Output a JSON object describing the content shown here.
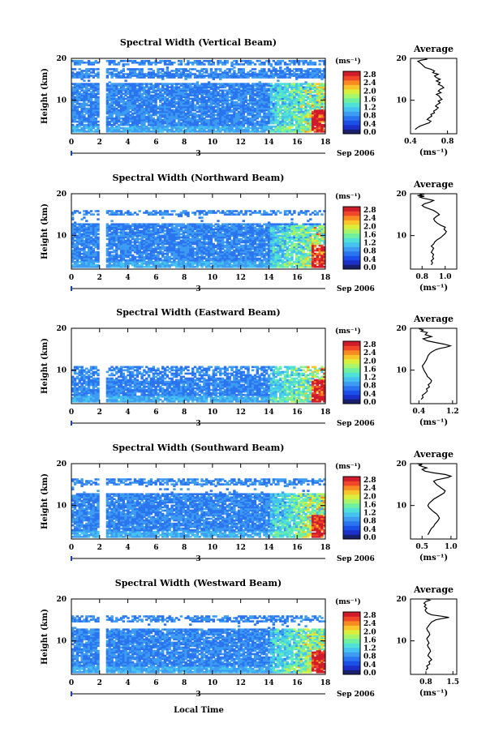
{
  "figure": {
    "xlabel": "Local Time",
    "date_label": "Sep 2006",
    "day_marker": "3"
  },
  "colorbar": {
    "unit": "(ms⁻¹)",
    "ticks": [
      "2.8",
      "2.4",
      "2.0",
      "1.6",
      "1.2",
      "0.8",
      "0.4",
      "0.0"
    ],
    "colors": [
      "#18206b",
      "#1c2fc8",
      "#1a4fe8",
      "#2b74f0",
      "#3d9cf2",
      "#45c3f0",
      "#4fe0d8",
      "#6ef0a0",
      "#a6f56a",
      "#dcee3c",
      "#f9c52a",
      "#f98a22",
      "#f0462a",
      "#d01c2a"
    ]
  },
  "chart_data": [
    {
      "type": "heatmap",
      "title": "Spectral Width (Vertical Beam)",
      "ylabel": "Height (km)",
      "xlim": [
        0,
        18
      ],
      "ylim": [
        2,
        20
      ],
      "xticks": [
        0,
        2,
        4,
        6,
        8,
        10,
        12,
        14,
        16,
        18
      ],
      "yticks": [
        10,
        20
      ],
      "data_gap_x": 2.2,
      "no_echo_bands_km": [
        [
          17.5,
          18.5
        ],
        [
          14.0,
          15.2
        ]
      ],
      "upper_limit_km": 19.5,
      "lower_limit_km": 2.3,
      "high_width_region": {
        "x_start": 14.0,
        "y_max": 14.0
      },
      "colorbar_range": [
        0.0,
        2.8
      ]
    },
    {
      "type": "heatmap",
      "title": "Spectral Width (Northward Beam)",
      "ylabel": "Height (km)",
      "xlim": [
        0,
        18
      ],
      "ylim": [
        2,
        20
      ],
      "xticks": [
        0,
        2,
        4,
        6,
        8,
        10,
        12,
        14,
        16,
        18
      ],
      "yticks": [
        10,
        20
      ],
      "data_gap_x": 2.2,
      "no_echo_bands_km": [
        [
          16.5,
          20.0
        ],
        [
          13.0,
          14.8
        ]
      ],
      "upper_limit_km": 16.2,
      "lower_limit_km": 2.3,
      "high_width_region": {
        "x_start": 14.0,
        "y_max": 12.5
      },
      "colorbar_range": [
        0.0,
        2.8
      ]
    },
    {
      "type": "heatmap",
      "title": "Spectral Width (Eastward Beam)",
      "ylabel": "Height (km)",
      "xlim": [
        0,
        18
      ],
      "ylim": [
        2,
        20
      ],
      "xticks": [
        0,
        2,
        4,
        6,
        8,
        10,
        12,
        14,
        16,
        18
      ],
      "yticks": [
        10,
        20
      ],
      "data_gap_x": 2.2,
      "no_echo_bands_km": [
        [
          11.0,
          20.0
        ]
      ],
      "upper_limit_km": 11.0,
      "lower_limit_km": 2.3,
      "high_width_region": {
        "x_start": 14.0,
        "y_max": 12.5
      },
      "colorbar_range": [
        0.0,
        2.8
      ]
    },
    {
      "type": "heatmap",
      "title": "Spectral Width (Southward Beam)",
      "ylabel": "Height (km)",
      "xlim": [
        0,
        18
      ],
      "ylim": [
        2,
        20
      ],
      "xticks": [
        0,
        2,
        4,
        6,
        8,
        10,
        12,
        14,
        16,
        18
      ],
      "yticks": [
        10,
        20
      ],
      "data_gap_x": 2.2,
      "no_echo_bands_km": [
        [
          17.0,
          20.0
        ],
        [
          13.0,
          14.8
        ]
      ],
      "upper_limit_km": 16.5,
      "lower_limit_km": 2.3,
      "high_width_region": {
        "x_start": 14.0,
        "y_max": 13.0
      },
      "colorbar_range": [
        0.0,
        2.8
      ]
    },
    {
      "type": "heatmap",
      "title": "Spectral Width (Westward Beam)",
      "ylabel": "Height (km)",
      "xlim": [
        0,
        18
      ],
      "ylim": [
        2,
        20
      ],
      "xticks": [
        0,
        2,
        4,
        6,
        8,
        10,
        12,
        14,
        16,
        18
      ],
      "yticks": [
        10,
        20
      ],
      "data_gap_x": 2.2,
      "no_echo_bands_km": [
        [
          16.5,
          20.0
        ],
        [
          13.0,
          14.5
        ]
      ],
      "upper_limit_km": 16.2,
      "lower_limit_km": 2.3,
      "high_width_region": {
        "x_start": 14.0,
        "y_max": 13.0
      },
      "colorbar_range": [
        0.0,
        2.8
      ]
    },
    {
      "type": "line",
      "title": "Average",
      "xlabel": "(ms⁻¹)",
      "xlim": [
        0.4,
        0.9
      ],
      "ylim": [
        2,
        20
      ],
      "xtick_labels": [
        "0.4",
        "0.8"
      ],
      "xtick_values": [
        0.4,
        0.8
      ],
      "yticks": [
        10,
        20
      ],
      "x": [
        0.45,
        0.47,
        0.5,
        0.55,
        0.6,
        0.62,
        0.58,
        0.6,
        0.63,
        0.62,
        0.66,
        0.65,
        0.68,
        0.7,
        0.67,
        0.69,
        0.72,
        0.7,
        0.74,
        0.72,
        0.71,
        0.68,
        0.73,
        0.7,
        0.72,
        0.76,
        0.74,
        0.7,
        0.72,
        0.68,
        0.72,
        0.68,
        0.66,
        0.7,
        0.64,
        0.66,
        0.62,
        0.56,
        0.54,
        0.52,
        0.5,
        0.48,
        0.52,
        0.58,
        0.56
      ],
      "y": [
        3.0,
        3.4,
        3.8,
        4.2,
        4.6,
        5.0,
        5.4,
        5.8,
        6.2,
        6.6,
        7.0,
        7.4,
        7.8,
        8.2,
        8.6,
        9.0,
        9.4,
        9.8,
        10.2,
        10.6,
        11.0,
        11.4,
        11.8,
        12.2,
        12.6,
        13.0,
        13.4,
        13.8,
        14.2,
        14.6,
        15.0,
        15.4,
        15.8,
        16.2,
        16.6,
        17.0,
        17.4,
        17.8,
        18.2,
        18.6,
        19.0,
        19.3,
        19.6,
        19.8,
        19.9
      ]
    },
    {
      "type": "line",
      "title": "Average",
      "xlabel": "(ms⁻¹)",
      "xlim": [
        0.7,
        1.1
      ],
      "ylim": [
        2,
        20
      ],
      "xtick_labels": [
        "0.8",
        "1.0"
      ],
      "xtick_values": [
        0.8,
        1.0
      ],
      "yticks": [
        10,
        20
      ],
      "x": [
        0.88,
        0.89,
        0.88,
        0.9,
        0.89,
        0.9,
        0.88,
        0.89,
        0.9,
        0.88,
        0.9,
        0.91,
        0.93,
        0.96,
        0.98,
        1.0,
        1.01,
        0.99,
        1.0,
        0.96,
        0.93,
        0.91,
        0.9,
        0.92,
        0.95,
        0.93,
        0.9,
        0.86,
        0.82,
        0.8,
        0.82,
        0.87,
        0.9,
        0.85,
        0.8,
        0.78,
        0.82,
        0.76,
        0.8,
        0.78,
        0.82,
        0.78
      ],
      "y": [
        3.0,
        3.5,
        4.0,
        4.5,
        5.0,
        5.5,
        6.0,
        6.5,
        7.0,
        7.5,
        8.0,
        8.5,
        9.0,
        9.5,
        10.0,
        10.5,
        11.0,
        11.5,
        12.0,
        12.5,
        13.0,
        13.5,
        14.0,
        14.5,
        15.0,
        15.5,
        16.0,
        16.4,
        16.8,
        17.2,
        17.6,
        18.0,
        18.4,
        18.7,
        19.0,
        19.2,
        19.4,
        19.6,
        19.7,
        19.8,
        19.9,
        20.0
      ]
    },
    {
      "type": "line",
      "title": "Average",
      "xlabel": "(ms⁻¹)",
      "xlim": [
        0.2,
        1.3
      ],
      "ylim": [
        2,
        20
      ],
      "xtick_labels": [
        "0.4",
        "1.2"
      ],
      "xtick_values": [
        0.4,
        1.2
      ],
      "yticks": [
        10,
        20
      ],
      "x": [
        0.45,
        0.5,
        0.48,
        0.55,
        0.6,
        0.58,
        0.65,
        0.62,
        0.68,
        0.7,
        0.66,
        0.6,
        0.58,
        0.55,
        0.52,
        0.5,
        0.48,
        0.52,
        0.55,
        0.58,
        0.6,
        0.62,
        0.66,
        0.7,
        0.75,
        0.8,
        0.9,
        1.05,
        1.15,
        1.0,
        0.8,
        0.6,
        0.5,
        0.7,
        0.55,
        0.6,
        0.45,
        0.5,
        0.4
      ],
      "y": [
        3.0,
        3.5,
        4.0,
        4.5,
        5.0,
        5.5,
        6.0,
        6.5,
        7.0,
        7.5,
        8.0,
        8.5,
        9.0,
        9.5,
        10.0,
        10.5,
        11.0,
        11.5,
        12.0,
        12.5,
        13.0,
        13.5,
        14.0,
        14.3,
        14.6,
        14.9,
        15.2,
        15.5,
        15.8,
        16.2,
        16.6,
        17.0,
        17.5,
        18.0,
        18.5,
        19.0,
        19.3,
        19.6,
        19.9
      ]
    },
    {
      "type": "line",
      "title": "Average",
      "xlabel": "(ms⁻¹)",
      "xlim": [
        0.3,
        1.1
      ],
      "ylim": [
        2,
        20
      ],
      "xtick_labels": [
        "0.5",
        "1.0"
      ],
      "xtick_values": [
        0.5,
        1.0
      ],
      "yticks": [
        10,
        20
      ],
      "x": [
        0.6,
        0.62,
        0.64,
        0.66,
        0.7,
        0.72,
        0.75,
        0.78,
        0.8,
        0.78,
        0.75,
        0.7,
        0.66,
        0.62,
        0.6,
        0.62,
        0.66,
        0.7,
        0.76,
        0.82,
        0.88,
        0.9,
        0.85,
        0.8,
        0.75,
        0.72,
        0.7,
        0.75,
        0.85,
        0.95,
        1.0,
        0.9,
        0.7,
        0.55,
        0.5,
        0.58,
        0.5,
        0.45,
        0.5,
        0.42
      ],
      "y": [
        3.0,
        3.5,
        4.0,
        4.5,
        5.0,
        5.5,
        6.0,
        6.5,
        7.0,
        7.5,
        8.0,
        8.5,
        9.0,
        9.5,
        10.0,
        10.5,
        11.0,
        11.5,
        12.0,
        12.5,
        13.0,
        13.5,
        14.0,
        14.5,
        15.0,
        15.5,
        15.8,
        16.1,
        16.4,
        16.7,
        17.0,
        17.4,
        17.8,
        18.2,
        18.6,
        19.0,
        19.3,
        19.6,
        19.8,
        20.0
      ]
    },
    {
      "type": "line",
      "title": "Average",
      "xlabel": "(ms⁻¹)",
      "xlim": [
        0.4,
        1.6
      ],
      "ylim": [
        2,
        20
      ],
      "xtick_labels": [
        "0.8",
        "1.5"
      ],
      "xtick_values": [
        0.8,
        1.5
      ],
      "yticks": [
        10,
        20
      ],
      "x": [
        0.8,
        0.85,
        0.82,
        0.9,
        0.88,
        0.95,
        0.9,
        0.85,
        0.88,
        0.92,
        0.9,
        0.86,
        0.84,
        0.88,
        0.85,
        0.82,
        0.86,
        0.9,
        0.88,
        0.84,
        0.82,
        0.86,
        0.9,
        0.95,
        1.05,
        1.2,
        1.4,
        1.2,
        0.95,
        0.85,
        0.8,
        0.78,
        0.82,
        0.76,
        0.8,
        0.75,
        0.8,
        0.9,
        0.8
      ],
      "y": [
        3.0,
        3.5,
        4.0,
        4.5,
        5.0,
        5.5,
        6.0,
        6.5,
        7.0,
        7.5,
        8.0,
        8.5,
        9.0,
        9.5,
        10.0,
        10.5,
        11.0,
        11.5,
        12.0,
        12.5,
        13.0,
        13.5,
        14.0,
        14.5,
        15.0,
        15.3,
        15.6,
        15.9,
        16.2,
        16.6,
        17.0,
        17.4,
        17.8,
        18.2,
        18.6,
        19.0,
        19.4,
        19.7,
        20.0
      ]
    }
  ]
}
